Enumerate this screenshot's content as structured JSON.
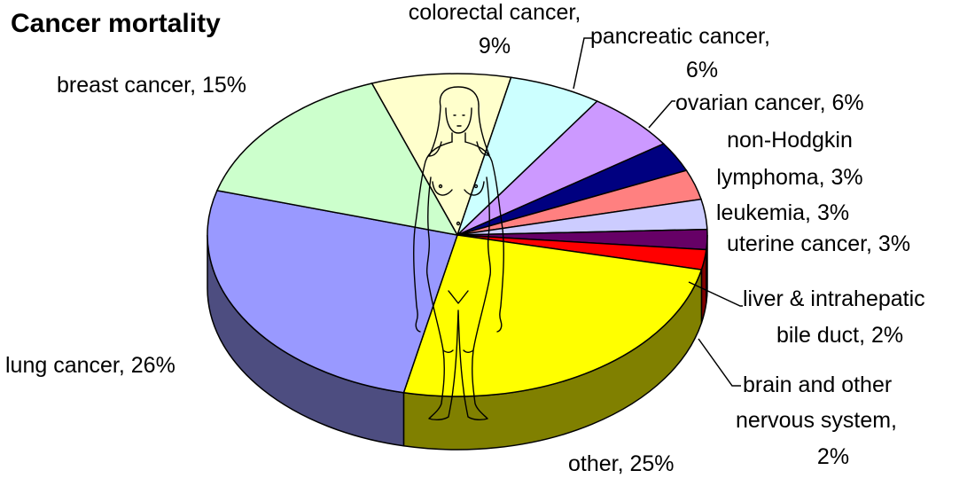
{
  "chart_data": {
    "type": "pie",
    "title": "Cancer mortality",
    "slices": [
      {
        "name": "colorectal cancer",
        "value": 9,
        "label_lines": [
          "colorectal cancer,",
          "9%"
        ],
        "color": "#ffffcc"
      },
      {
        "name": "pancreatic cancer",
        "value": 6,
        "label_lines": [
          "pancreatic cancer,",
          "6%"
        ],
        "color": "#ccffff"
      },
      {
        "name": "ovarian cancer",
        "value": 6,
        "label_lines": [
          "ovarian cancer, 6%"
        ],
        "color": "#cc99ff"
      },
      {
        "name": "non-Hodgkin lymphoma",
        "value": 3,
        "label_lines": [
          "non-Hodgkin",
          "lymphoma, 3%"
        ],
        "color": "#000080"
      },
      {
        "name": "leukemia",
        "value": 3,
        "label_lines": [
          "leukemia, 3%"
        ],
        "color": "#ff8080"
      },
      {
        "name": "uterine cancer",
        "value": 3,
        "label_lines": [
          "uterine cancer, 3%"
        ],
        "color": "#ccccff"
      },
      {
        "name": "liver & intrahepatic bile duct",
        "value": 2,
        "label_lines": [
          "liver & intrahepatic",
          "bile duct, 2%"
        ],
        "color": "#660066"
      },
      {
        "name": "brain and other nervous system",
        "value": 2,
        "label_lines": [
          "brain and other",
          "nervous system,",
          "2%"
        ],
        "color": "#ff0000"
      },
      {
        "name": "other",
        "value": 25,
        "label_lines": [
          "other, 25%"
        ],
        "color": "#ffff00"
      },
      {
        "name": "lung cancer",
        "value": 26,
        "label_lines": [
          "lung cancer, 26%"
        ],
        "color": "#9999ff"
      },
      {
        "name": "breast cancer",
        "value": 15,
        "label_lines": [
          "breast cancer, 15%"
        ],
        "color": "#ccffcc"
      }
    ],
    "style": "3d-pie",
    "legend": "none",
    "illustration": "female-figure-outline"
  }
}
